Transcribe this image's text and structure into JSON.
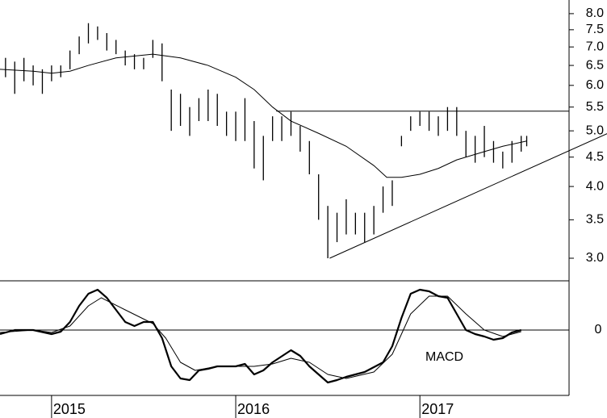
{
  "chart_data": [
    {
      "type": "hilo",
      "scale": "log",
      "color": "#000000",
      "xlim": [
        2014.72,
        2017.81
      ],
      "ylim": [
        2.74,
        8.45
      ],
      "yticks": [
        {
          "value": 3,
          "label": "3.0"
        },
        3.5,
        {
          "value": 4,
          "label": "4.0"
        },
        4.5,
        {
          "value": 5,
          "label": "5.0"
        },
        5.5,
        {
          "value": 6,
          "label": "6.0"
        },
        6.5,
        {
          "value": 7,
          "label": "7.0"
        },
        7.5,
        {
          "value": 8,
          "label": "8.0"
        }
      ],
      "x": [
        2014.75,
        2014.8,
        2014.85,
        2014.9,
        2014.95,
        2015.0,
        2015.05,
        2015.1,
        2015.15,
        2015.2,
        2015.25,
        2015.3,
        2015.35,
        2015.4,
        2015.45,
        2015.5,
        2015.55,
        2015.6,
        2015.65,
        2015.7,
        2015.75,
        2015.8,
        2015.85,
        2015.9,
        2015.95,
        2016.0,
        2016.05,
        2016.1,
        2016.15,
        2016.2,
        2016.25,
        2016.3,
        2016.35,
        2016.4,
        2016.45,
        2016.5,
        2016.55,
        2016.6,
        2016.65,
        2016.7,
        2016.75,
        2016.8,
        2016.85,
        2016.9,
        2016.95,
        2017.0,
        2017.05,
        2017.1,
        2017.15,
        2017.2,
        2017.25,
        2017.3,
        2017.35,
        2017.4,
        2017.45,
        2017.5,
        2017.55,
        2017.58
      ],
      "high": [
        6.7,
        6.6,
        6.7,
        6.5,
        6.4,
        6.5,
        6.5,
        6.9,
        7.3,
        7.7,
        7.6,
        7.4,
        7.2,
        6.9,
        6.8,
        6.7,
        7.2,
        7.1,
        5.9,
        5.8,
        5.5,
        5.7,
        5.9,
        5.8,
        5.4,
        5.4,
        5.7,
        5.2,
        4.9,
        5.3,
        5.3,
        5.4,
        5.1,
        4.8,
        4.2,
        3.7,
        3.6,
        3.8,
        3.6,
        3.6,
        3.7,
        4.0,
        4.1,
        4.9,
        5.3,
        5.4,
        5.4,
        5.3,
        5.5,
        5.5,
        5.0,
        4.9,
        5.1,
        4.8,
        4.6,
        4.8,
        4.9,
        4.9
      ],
      "low": [
        6.2,
        5.8,
        6.1,
        6.0,
        5.8,
        6.1,
        6.2,
        6.4,
        6.8,
        7.1,
        7.2,
        6.9,
        6.8,
        6.5,
        6.4,
        6.4,
        6.7,
        6.1,
        5.0,
        5.1,
        4.9,
        5.2,
        5.2,
        5.1,
        4.9,
        4.8,
        4.8,
        4.3,
        4.1,
        4.8,
        4.8,
        4.9,
        4.6,
        4.2,
        3.5,
        3.0,
        3.2,
        3.3,
        3.3,
        3.2,
        3.3,
        3.6,
        3.7,
        4.7,
        5.0,
        5.1,
        5.0,
        4.9,
        5.0,
        4.9,
        4.5,
        4.4,
        4.5,
        4.4,
        4.3,
        4.4,
        4.6,
        4.7
      ],
      "average": {
        "color": "#000000",
        "x": [
          2014.72,
          2014.9,
          2015.0,
          2015.1,
          2015.2,
          2015.35,
          2015.55,
          2015.7,
          2015.85,
          2016.0,
          2016.1,
          2016.2,
          2016.3,
          2016.45,
          2016.6,
          2016.75,
          2016.82,
          2016.9,
          2017.0,
          2017.1,
          2017.2,
          2017.35,
          2017.45,
          2017.58
        ],
        "values": [
          6.4,
          6.35,
          6.3,
          6.35,
          6.5,
          6.7,
          6.8,
          6.7,
          6.5,
          6.2,
          5.9,
          5.5,
          5.2,
          4.95,
          4.7,
          4.35,
          4.15,
          4.15,
          4.2,
          4.3,
          4.45,
          4.6,
          4.7,
          4.8
        ]
      },
      "lines": [
        {
          "x": [
            2016.22,
            2017.81
          ],
          "y": [
            5.41,
            5.41
          ]
        },
        {
          "x": [
            2016.51,
            2018.02
          ],
          "y": [
            3.0,
            4.95
          ]
        }
      ]
    },
    {
      "type": "line",
      "annotation": "MACD",
      "xlim": [
        2014.72,
        2017.81
      ],
      "ylim": [
        -0.81,
        0.61
      ],
      "yticks": [
        0
      ],
      "xticks": [
        2015,
        2016,
        2017
      ],
      "series": [
        {
          "color": "#000000",
          "width": 2.2,
          "x": [
            2014.72,
            2014.8,
            2014.9,
            2015.0,
            2015.05,
            2015.1,
            2015.15,
            2015.2,
            2015.25,
            2015.3,
            2015.35,
            2015.4,
            2015.45,
            2015.5,
            2015.55,
            2015.6,
            2015.65,
            2015.7,
            2015.75,
            2015.8,
            2015.85,
            2015.9,
            2016.0,
            2016.05,
            2016.1,
            2016.15,
            2016.2,
            2016.3,
            2016.35,
            2016.4,
            2016.45,
            2016.5,
            2016.55,
            2016.6,
            2016.7,
            2016.8,
            2016.85,
            2016.9,
            2016.95,
            2017.0,
            2017.05,
            2017.1,
            2017.15,
            2017.2,
            2017.25,
            2017.3,
            2017.35,
            2017.4,
            2017.45,
            2017.5,
            2017.55
          ],
          "values": [
            -0.05,
            0.0,
            0.0,
            -0.05,
            -0.02,
            0.1,
            0.3,
            0.45,
            0.5,
            0.4,
            0.25,
            0.1,
            0.05,
            0.1,
            0.1,
            -0.1,
            -0.45,
            -0.6,
            -0.62,
            -0.5,
            -0.48,
            -0.45,
            -0.45,
            -0.42,
            -0.55,
            -0.5,
            -0.4,
            -0.25,
            -0.32,
            -0.45,
            -0.55,
            -0.65,
            -0.62,
            -0.58,
            -0.52,
            -0.4,
            -0.2,
            0.15,
            0.45,
            0.5,
            0.48,
            0.42,
            0.4,
            0.2,
            0.0,
            -0.05,
            -0.08,
            -0.12,
            -0.1,
            -0.03,
            0.0
          ]
        },
        {
          "color": "#000000",
          "width": 1,
          "x": [
            2014.72,
            2014.9,
            2015.0,
            2015.1,
            2015.2,
            2015.27,
            2015.4,
            2015.55,
            2015.62,
            2015.7,
            2015.78,
            2015.9,
            2016.1,
            2016.2,
            2016.3,
            2016.4,
            2016.5,
            2016.6,
            2016.75,
            2016.85,
            2016.95,
            2017.05,
            2017.15,
            2017.25,
            2017.35,
            2017.45,
            2017.55
          ],
          "values": [
            -0.03,
            0.0,
            -0.03,
            0.05,
            0.3,
            0.4,
            0.25,
            0.08,
            -0.1,
            -0.4,
            -0.5,
            -0.45,
            -0.45,
            -0.42,
            -0.35,
            -0.4,
            -0.55,
            -0.6,
            -0.52,
            -0.3,
            0.2,
            0.42,
            0.42,
            0.2,
            0.0,
            -0.08,
            -0.02
          ]
        }
      ]
    }
  ]
}
